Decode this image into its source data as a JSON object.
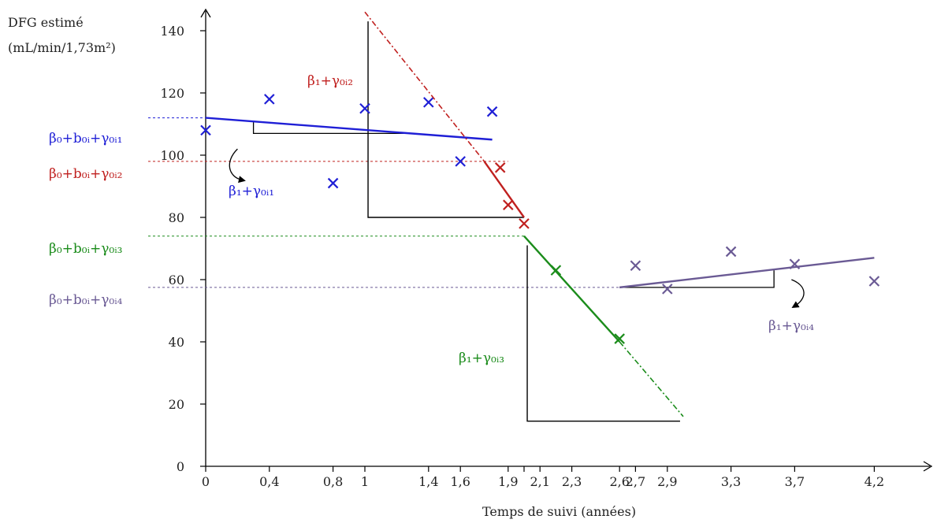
{
  "chart_data": {
    "type": "line",
    "ylabel_line1": "DFG estimé",
    "ylabel_line2": "(mL/min/1,73m²)",
    "xlabel": "Temps de suivi (années)",
    "xlim": [
      0,
      4.5
    ],
    "ylim": [
      0,
      150
    ],
    "x_ticks": [
      0,
      0.4,
      0.8,
      1,
      1.4,
      1.6,
      1.9,
      2,
      2.1,
      2.3,
      2.6,
      2.7,
      2.9,
      3.3,
      3.7,
      4.2
    ],
    "x_tick_labels": [
      "0",
      "0,4",
      "0,8",
      "1",
      "1,4",
      "1,6",
      "1,9",
      "",
      "2,1",
      "2,3",
      "2,6",
      "2,7",
      "2,9",
      "3,3",
      "3,7",
      "4,2"
    ],
    "y_ticks": [
      0,
      20,
      40,
      60,
      80,
      100,
      120,
      140
    ],
    "y_tick_labels": [
      "0",
      "20",
      "40",
      "60",
      "80",
      "100",
      "120",
      "140"
    ],
    "colors": {
      "blue": "#1f1fd6",
      "red": "#c0201f",
      "green": "#1b8c1b",
      "purple": "#6a5a94",
      "black": "#000000"
    },
    "series": [
      {
        "color_key": "blue",
        "points": [
          [
            0,
            108
          ],
          [
            0.4,
            118
          ],
          [
            0.8,
            91
          ],
          [
            1.0,
            115
          ],
          [
            1.4,
            117
          ],
          [
            1.6,
            98
          ],
          [
            1.8,
            114
          ]
        ],
        "line": [
          [
            0,
            112
          ],
          [
            1.8,
            105
          ]
        ],
        "intercept_label": "β₀+b₀ᵢ+γ₀ᵢ₁",
        "intercept_y": 112,
        "slope_label": "β₁+γ₀ᵢ₁"
      },
      {
        "color_key": "red",
        "points": [
          [
            1.85,
            96
          ],
          [
            1.9,
            84
          ],
          [
            2.0,
            78
          ]
        ],
        "line": [
          [
            1.75,
            98
          ],
          [
            2.0,
            80
          ]
        ],
        "extension": [
          [
            1.0,
            146
          ],
          [
            1.75,
            98
          ]
        ],
        "intercept_label": "β₀+b₀ᵢ+γ₀ᵢ₂",
        "intercept_y": 98,
        "slope_label": "β₁+γ₀ᵢ₂"
      },
      {
        "color_key": "green",
        "points": [
          [
            2.2,
            63
          ],
          [
            2.6,
            41
          ]
        ],
        "line": [
          [
            2.0,
            74
          ],
          [
            2.6,
            40
          ]
        ],
        "extension": [
          [
            2.6,
            40
          ],
          [
            3.0,
            16
          ]
        ],
        "intercept_label": "β₀+b₀ᵢ+γ₀ᵢ₃",
        "intercept_y": 74,
        "slope_label": "β₁+γ₀ᵢ₃"
      },
      {
        "color_key": "purple",
        "points": [
          [
            2.7,
            64.5
          ],
          [
            2.9,
            57
          ],
          [
            3.3,
            69
          ],
          [
            3.7,
            65
          ],
          [
            4.2,
            59.5
          ]
        ],
        "line": [
          [
            2.6,
            57.5
          ],
          [
            4.2,
            67
          ]
        ],
        "intercept_label": "β₀+b₀ᵢ+γ₀ᵢ₄",
        "intercept_y": 57.5,
        "slope_label": "β₁+γ₀ᵢ₄"
      }
    ]
  }
}
